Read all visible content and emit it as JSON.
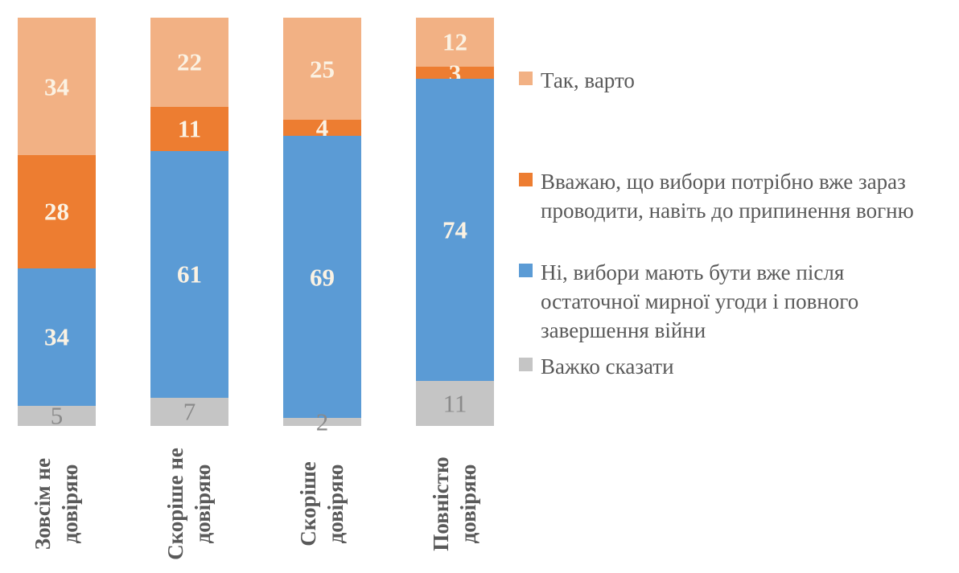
{
  "chart_data": {
    "type": "bar",
    "variant": "stacked-vertical-percent",
    "title": "",
    "xlabel": "",
    "ylabel": "",
    "axes_visible": false,
    "grid": false,
    "legend_position": "right",
    "background_color": "#FFFFFF",
    "legend_text_color": "#595959",
    "category_text_color": "#595959",
    "categories": [
      "Зовсім не\nдовіряю",
      "Скоріше не\nдовіряю",
      "Скоріше\nдовіряю",
      "Повністю\nдовіряю"
    ],
    "series": [
      {
        "name": "Так, варто",
        "legend_label": "Так, варто",
        "color": "#F2B184",
        "label_color": "#FBF2E3",
        "values": [
          34,
          22,
          25,
          12
        ]
      },
      {
        "name": "Вважаю, що вибори потрібно вже зараз проводити, навіть до припинення вогню",
        "legend_label": "Вважаю, що вибори потрібно вже зараз\nпроводити, навіть до припинення вогню",
        "color": "#ED7D31",
        "label_color": "#FBF2E3",
        "values": [
          28,
          11,
          4,
          3
        ]
      },
      {
        "name": "Ні, вибори мають бути вже після остаточної мирної угоди і повного завершення війни",
        "legend_label": "Ні, вибори мають бути вже після\nостаточної мирної угоди і повного\nзавершення війни",
        "color": "#5B9BD5",
        "label_color": "#FBF2E3",
        "values": [
          34,
          61,
          69,
          74
        ]
      },
      {
        "name": "Важко сказати",
        "legend_label": "Важко сказати",
        "color": "#C5C5C5",
        "label_color": "#8A8A8A",
        "values": [
          5,
          7,
          2,
          11
        ]
      }
    ]
  }
}
